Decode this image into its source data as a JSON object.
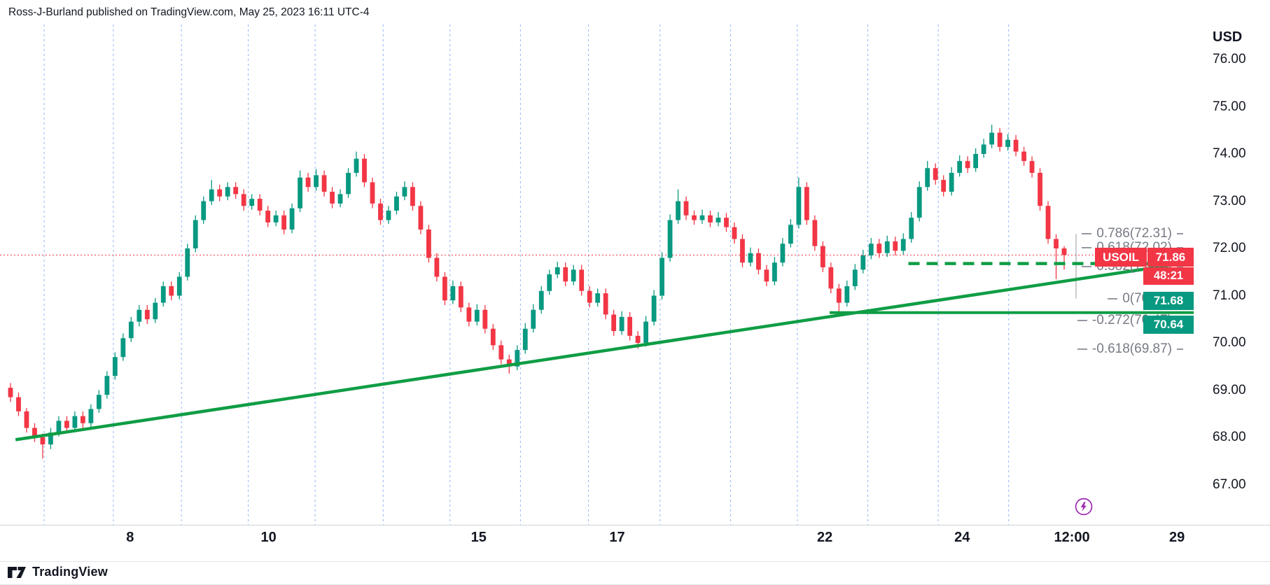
{
  "header": {
    "attribution": "Ross-J-Burland published on TradingView.com, May 25, 2023 16:11 UTC-4"
  },
  "price_axis": {
    "currency": "USD",
    "ticks": [
      "76.00",
      "75.00",
      "74.00",
      "73.00",
      "72.00",
      "71.00",
      "70.00",
      "69.00",
      "68.00",
      "67.00"
    ]
  },
  "time_axis": {
    "ticks": [
      {
        "label": "8",
        "xf": 0.109
      },
      {
        "label": "10",
        "xf": 0.225
      },
      {
        "label": "15",
        "xf": 0.401
      },
      {
        "label": "17",
        "xf": 0.517
      },
      {
        "label": "22",
        "xf": 0.691
      },
      {
        "label": "24",
        "xf": 0.806
      },
      {
        "label": "12:00",
        "xf": 0.898
      },
      {
        "label": "29",
        "xf": 0.986
      }
    ]
  },
  "badges": {
    "symbol": "USOIL",
    "last_price": "71.86",
    "countdown": "48:21",
    "line1_price": "71.68",
    "line2_price": "70.64"
  },
  "footer": {
    "brand": "TradingView"
  },
  "icons": {
    "lightning": "circled-lightning-bolt",
    "logo_mark": "tradingview-mark"
  },
  "colors": {
    "up": "#089981",
    "down": "#f23645",
    "line_green": "#0f9d45",
    "badge_red": "#f23645",
    "badge_green": "#089981",
    "session_blue": "#7aa7f8",
    "fib_gray": "#787b86",
    "axis_text": "#131722"
  },
  "chart_data": {
    "type": "candlestick",
    "symbol": "USOIL",
    "y_axis": {
      "min": 66.6,
      "max": 76.8,
      "tick_prices": [
        76,
        75,
        74,
        73,
        72,
        71,
        70,
        69,
        68,
        67
      ]
    },
    "x_tick_labels": [
      "8",
      "10",
      "15",
      "17",
      "22",
      "24",
      "12:00",
      "29"
    ],
    "current_price": 71.86,
    "candles_ohlc": [
      [
        69.05,
        69.15,
        68.75,
        68.85
      ],
      [
        68.85,
        68.95,
        68.45,
        68.55
      ],
      [
        68.55,
        68.62,
        68.1,
        68.2
      ],
      [
        68.2,
        68.3,
        67.9,
        68.0
      ],
      [
        68.0,
        68.08,
        67.55,
        67.85
      ],
      [
        67.85,
        68.2,
        67.75,
        68.1
      ],
      [
        68.1,
        68.45,
        68.02,
        68.35
      ],
      [
        68.35,
        68.45,
        68.1,
        68.2
      ],
      [
        68.2,
        68.55,
        68.12,
        68.45
      ],
      [
        68.45,
        68.55,
        68.2,
        68.3
      ],
      [
        68.3,
        68.7,
        68.22,
        68.6
      ],
      [
        68.6,
        69.0,
        68.52,
        68.9
      ],
      [
        68.9,
        69.4,
        68.82,
        69.3
      ],
      [
        69.3,
        69.8,
        69.22,
        69.7
      ],
      [
        69.7,
        70.2,
        69.62,
        70.1
      ],
      [
        70.1,
        70.55,
        70.02,
        70.45
      ],
      [
        70.45,
        70.8,
        70.35,
        70.7
      ],
      [
        70.7,
        70.8,
        70.4,
        70.5
      ],
      [
        70.5,
        70.95,
        70.42,
        70.85
      ],
      [
        70.85,
        71.3,
        70.77,
        71.2
      ],
      [
        71.2,
        71.3,
        70.9,
        71.0
      ],
      [
        71.0,
        71.5,
        70.92,
        71.4
      ],
      [
        71.4,
        72.1,
        71.32,
        72.0
      ],
      [
        72.0,
        72.7,
        71.92,
        72.6
      ],
      [
        72.6,
        73.1,
        72.52,
        73.0
      ],
      [
        73.0,
        73.45,
        72.92,
        73.25
      ],
      [
        73.25,
        73.35,
        73.0,
        73.1
      ],
      [
        73.1,
        73.4,
        73.02,
        73.3
      ],
      [
        73.3,
        73.4,
        73.05,
        73.15
      ],
      [
        73.15,
        73.25,
        72.8,
        72.9
      ],
      [
        72.9,
        73.15,
        72.82,
        73.05
      ],
      [
        73.05,
        73.15,
        72.7,
        72.8
      ],
      [
        72.8,
        72.9,
        72.45,
        72.55
      ],
      [
        72.55,
        72.8,
        72.47,
        72.7
      ],
      [
        72.7,
        72.8,
        72.3,
        72.4
      ],
      [
        72.4,
        72.95,
        72.32,
        72.85
      ],
      [
        72.85,
        73.65,
        72.77,
        73.5
      ],
      [
        73.5,
        73.6,
        73.2,
        73.3
      ],
      [
        73.3,
        73.68,
        73.22,
        73.55
      ],
      [
        73.55,
        73.65,
        73.1,
        73.2
      ],
      [
        73.2,
        73.3,
        72.85,
        72.95
      ],
      [
        72.95,
        73.25,
        72.87,
        73.15
      ],
      [
        73.15,
        73.7,
        73.07,
        73.6
      ],
      [
        73.6,
        74.05,
        73.52,
        73.9
      ],
      [
        73.9,
        74.0,
        73.3,
        73.4
      ],
      [
        73.4,
        73.5,
        72.85,
        72.95
      ],
      [
        72.95,
        73.05,
        72.5,
        72.6
      ],
      [
        72.6,
        72.9,
        72.52,
        72.8
      ],
      [
        72.8,
        73.2,
        72.72,
        73.1
      ],
      [
        73.1,
        73.42,
        73.02,
        73.3
      ],
      [
        73.3,
        73.4,
        72.8,
        72.9
      ],
      [
        72.9,
        73.0,
        72.3,
        72.4
      ],
      [
        72.4,
        72.5,
        71.7,
        71.8
      ],
      [
        71.8,
        71.9,
        71.3,
        71.4
      ],
      [
        71.4,
        71.5,
        70.8,
        70.9
      ],
      [
        70.9,
        71.32,
        70.82,
        71.2
      ],
      [
        71.2,
        71.3,
        70.65,
        70.75
      ],
      [
        70.75,
        70.85,
        70.35,
        70.45
      ],
      [
        70.45,
        70.82,
        70.37,
        70.7
      ],
      [
        70.7,
        70.8,
        70.2,
        70.3
      ],
      [
        70.3,
        70.4,
        69.85,
        69.95
      ],
      [
        69.95,
        70.05,
        69.55,
        69.65
      ],
      [
        69.65,
        69.75,
        69.35,
        69.5
      ],
      [
        69.5,
        69.95,
        69.42,
        69.85
      ],
      [
        69.85,
        70.42,
        69.77,
        70.3
      ],
      [
        70.3,
        70.82,
        70.22,
        70.7
      ],
      [
        70.7,
        71.2,
        70.62,
        71.1
      ],
      [
        71.1,
        71.55,
        71.02,
        71.45
      ],
      [
        71.45,
        71.72,
        71.37,
        71.6
      ],
      [
        71.6,
        71.7,
        71.2,
        71.3
      ],
      [
        71.3,
        71.65,
        71.22,
        71.55
      ],
      [
        71.55,
        71.65,
        71.0,
        71.1
      ],
      [
        71.1,
        71.2,
        70.75,
        70.85
      ],
      [
        70.85,
        71.15,
        70.77,
        71.05
      ],
      [
        71.05,
        71.15,
        70.5,
        70.6
      ],
      [
        70.6,
        70.7,
        70.15,
        70.25
      ],
      [
        70.25,
        70.67,
        70.17,
        70.55
      ],
      [
        70.55,
        70.65,
        70.05,
        70.15
      ],
      [
        70.15,
        70.25,
        69.88,
        70.0
      ],
      [
        70.0,
        70.57,
        69.92,
        70.45
      ],
      [
        70.45,
        71.12,
        70.37,
        71.0
      ],
      [
        71.0,
        71.92,
        70.92,
        71.8
      ],
      [
        71.8,
        72.72,
        71.72,
        72.6
      ],
      [
        72.6,
        73.25,
        72.52,
        73.0
      ],
      [
        73.0,
        73.1,
        72.6,
        72.7
      ],
      [
        72.7,
        72.8,
        72.5,
        72.6
      ],
      [
        72.6,
        72.82,
        72.52,
        72.7
      ],
      [
        72.7,
        72.8,
        72.45,
        72.55
      ],
      [
        72.55,
        72.77,
        72.47,
        72.65
      ],
      [
        72.65,
        72.75,
        72.35,
        72.45
      ],
      [
        72.45,
        72.55,
        72.1,
        72.2
      ],
      [
        72.2,
        72.3,
        71.6,
        71.7
      ],
      [
        71.7,
        72.02,
        71.62,
        71.9
      ],
      [
        71.9,
        72.0,
        71.45,
        71.55
      ],
      [
        71.55,
        71.65,
        71.2,
        71.3
      ],
      [
        71.3,
        71.82,
        71.22,
        71.7
      ],
      [
        71.7,
        72.22,
        71.62,
        72.1
      ],
      [
        72.1,
        72.62,
        72.02,
        72.5
      ],
      [
        72.5,
        73.5,
        72.42,
        73.3
      ],
      [
        73.3,
        73.4,
        72.5,
        72.6
      ],
      [
        72.6,
        72.7,
        71.95,
        72.05
      ],
      [
        72.05,
        72.15,
        71.5,
        71.6
      ],
      [
        71.6,
        71.7,
        71.05,
        71.15
      ],
      [
        71.15,
        71.25,
        70.6,
        70.85
      ],
      [
        70.85,
        71.32,
        70.77,
        71.2
      ],
      [
        71.2,
        71.67,
        71.12,
        71.55
      ],
      [
        71.55,
        71.97,
        71.47,
        71.85
      ],
      [
        71.85,
        72.22,
        71.77,
        72.1
      ],
      [
        72.1,
        72.2,
        71.8,
        71.9
      ],
      [
        71.9,
        72.27,
        71.82,
        72.15
      ],
      [
        72.15,
        72.25,
        71.85,
        71.95
      ],
      [
        71.95,
        72.32,
        71.87,
        72.2
      ],
      [
        72.2,
        72.77,
        72.12,
        72.65
      ],
      [
        72.65,
        73.42,
        72.57,
        73.3
      ],
      [
        73.3,
        73.85,
        73.22,
        73.7
      ],
      [
        73.7,
        73.8,
        73.35,
        73.45
      ],
      [
        73.45,
        73.55,
        73.1,
        73.2
      ],
      [
        73.2,
        73.72,
        73.12,
        73.6
      ],
      [
        73.6,
        73.97,
        73.52,
        73.85
      ],
      [
        73.85,
        73.95,
        73.6,
        73.7
      ],
      [
        73.7,
        74.12,
        73.62,
        74.0
      ],
      [
        74.0,
        74.32,
        73.92,
        74.2
      ],
      [
        74.2,
        74.62,
        74.12,
        74.45
      ],
      [
        74.45,
        74.55,
        74.05,
        74.15
      ],
      [
        74.15,
        74.42,
        74.07,
        74.3
      ],
      [
        74.3,
        74.4,
        73.95,
        74.05
      ],
      [
        74.05,
        74.15,
        73.75,
        73.85
      ],
      [
        73.85,
        73.95,
        73.5,
        73.6
      ],
      [
        73.6,
        73.7,
        72.8,
        72.9
      ],
      [
        72.9,
        73.0,
        72.1,
        72.2
      ],
      [
        72.2,
        72.3,
        71.35,
        72.0
      ],
      [
        72.0,
        72.05,
        71.55,
        71.86
      ]
    ],
    "fib_retracement": {
      "anchor_low": 70.94,
      "anchor_high": 72.69,
      "levels": [
        {
          "label": "0.786(72.31)",
          "price": 72.31
        },
        {
          "label": "0.618(72.02)",
          "price": 72.02
        },
        {
          "label": "0.382(71.61)",
          "price": 71.61
        },
        {
          "label": "0(70.94)",
          "price": 70.94
        },
        {
          "label": "-0.272(70.47)",
          "price": 70.47
        },
        {
          "label": "-0.618(69.87)",
          "price": 69.87
        }
      ]
    },
    "overlays": {
      "trendline": {
        "from": {
          "xf": 0.013,
          "price": 67.95
        },
        "to": {
          "xf": 1.0,
          "price": 71.72
        }
      },
      "horizontal_line": {
        "price": 70.64,
        "from_xf": 0.695
      },
      "dashed_horizontal_line": {
        "price": 71.68,
        "from_xf": 0.761
      },
      "current_price_line": {
        "price": 71.86,
        "style": "dotted"
      },
      "session_breaks_xf": [
        0.037,
        0.095,
        0.152,
        0.208,
        0.264,
        0.321,
        0.377,
        0.436,
        0.493,
        0.553,
        0.612,
        0.668,
        0.727,
        0.786,
        0.845
      ]
    }
  }
}
